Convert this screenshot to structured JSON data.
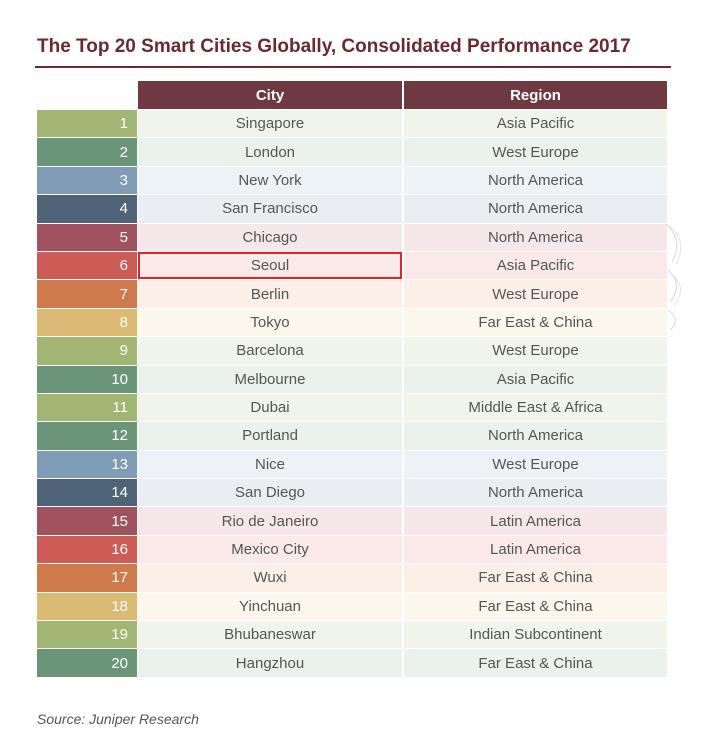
{
  "title": "The Top 20 Smart Cities Globally, Consolidated Performance 2017",
  "source": "Source: Juniper Research",
  "headers": {
    "city": "City",
    "region": "Region"
  },
  "colors": {
    "title": "#6b2a31",
    "header_bg": "#6e3940",
    "highlight_border": "#d9262b"
  },
  "rows": [
    {
      "rank": "1",
      "city": "Singapore",
      "region": "Asia Pacific",
      "rank_color": "#a1b673",
      "cell_bg": "#f1f4ea"
    },
    {
      "rank": "2",
      "city": "London",
      "region": "West Europe",
      "rank_color": "#6a9578",
      "cell_bg": "#ebf1ed"
    },
    {
      "rank": "3",
      "city": "New York",
      "region": "North America",
      "rank_color": "#7f9cb4",
      "cell_bg": "#edf2f6"
    },
    {
      "rank": "4",
      "city": "San Francisco",
      "region": "North America",
      "rank_color": "#4e6278",
      "cell_bg": "#eaeef3"
    },
    {
      "rank": "5",
      "city": "Chicago",
      "region": "North America",
      "rank_color": "#a0525e",
      "cell_bg": "#f6e8ea"
    },
    {
      "rank": "6",
      "city": "Seoul",
      "region": "Asia Pacific",
      "rank_color": "#cc5c55",
      "cell_bg": "#fae9e8",
      "highlight": true
    },
    {
      "rank": "7",
      "city": "Berlin",
      "region": "West Europe",
      "rank_color": "#cf7a4c",
      "cell_bg": "#fbefe8"
    },
    {
      "rank": "8",
      "city": "Tokyo",
      "region": "Far East & China",
      "rank_color": "#dbbb73",
      "cell_bg": "#fcf7ec"
    },
    {
      "rank": "9",
      "city": "Barcelona",
      "region": "West Europe",
      "rank_color": "#a1b673",
      "cell_bg": "#f1f4ea"
    },
    {
      "rank": "10",
      "city": "Melbourne",
      "region": "Asia Pacific",
      "rank_color": "#6a9578",
      "cell_bg": "#ebf1ed"
    },
    {
      "rank": "11",
      "city": "Dubai",
      "region": "Middle East & Africa",
      "rank_color": "#a1b673",
      "cell_bg": "#f1f4ea"
    },
    {
      "rank": "12",
      "city": "Portland",
      "region": "North America",
      "rank_color": "#6a9578",
      "cell_bg": "#ebf1ed"
    },
    {
      "rank": "13",
      "city": "Nice",
      "region": "West Europe",
      "rank_color": "#7f9cb4",
      "cell_bg": "#edf2f6"
    },
    {
      "rank": "14",
      "city": "San Diego",
      "region": "North America",
      "rank_color": "#4e6278",
      "cell_bg": "#eaeef3"
    },
    {
      "rank": "15",
      "city": "Rio de Janeiro",
      "region": "Latin America",
      "rank_color": "#a0525e",
      "cell_bg": "#f6e8ea"
    },
    {
      "rank": "16",
      "city": "Mexico City",
      "region": "Latin America",
      "rank_color": "#cc5c55",
      "cell_bg": "#fae9e8"
    },
    {
      "rank": "17",
      "city": "Wuxi",
      "region": "Far East & China",
      "rank_color": "#cf7a4c",
      "cell_bg": "#fbefe8"
    },
    {
      "rank": "18",
      "city": "Yinchuan",
      "region": "Far East & China",
      "rank_color": "#dbbb73",
      "cell_bg": "#fcf7ec"
    },
    {
      "rank": "19",
      "city": "Bhubaneswar",
      "region": "Indian Subcontinent",
      "rank_color": "#a1b673",
      "cell_bg": "#f1f4ea"
    },
    {
      "rank": "20",
      "city": "Hangzhou",
      "region": "Far East & China",
      "rank_color": "#6a9578",
      "cell_bg": "#ebf1ed"
    }
  ]
}
